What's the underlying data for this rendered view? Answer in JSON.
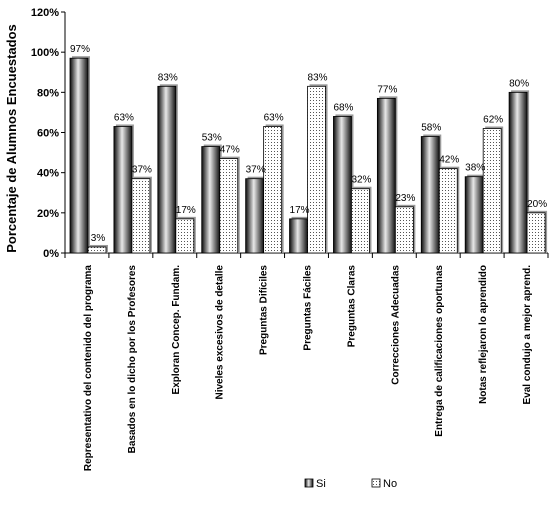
{
  "chart_data": {
    "type": "bar",
    "title": "",
    "xlabel": "",
    "ylabel": "Porcentaje de Alumnos Encuestados",
    "ylim": [
      0,
      120
    ],
    "yticks": [
      "0%",
      "20%",
      "40%",
      "60%",
      "80%",
      "100%",
      "120%"
    ],
    "grid": false,
    "legend_position": "bottom-right",
    "categories": [
      "Representativo del contenido del programa",
      "Basados en lo dicho por los Profesores",
      "Exploran Concep. Fundam.",
      "Niveles excesivos de detalle",
      "Preguntas Difíciles",
      "Preguntas Fáciles",
      "Preguntas Claras",
      "Correcciones Adecuadas",
      "Entrega de calificaciones oportunas",
      "Notas reflejaron lo aprendido",
      "Eval condujo a mejor aprend."
    ],
    "series": [
      {
        "name": "Si",
        "values": [
          97,
          63,
          83,
          53,
          37,
          17,
          68,
          77,
          58,
          38,
          80
        ],
        "labels": [
          "97%",
          "63%",
          "83%",
          "53%",
          "37%",
          "17%",
          "68%",
          "77%",
          "58%",
          "38%",
          "80%"
        ]
      },
      {
        "name": "No",
        "values": [
          3,
          37,
          17,
          47,
          63,
          83,
          32,
          23,
          42,
          62,
          20
        ],
        "labels": [
          "3%",
          "37%",
          "17%",
          "47%",
          "63%",
          "83%",
          "32%",
          "23%",
          "42%",
          "62%",
          "20%"
        ]
      }
    ]
  }
}
